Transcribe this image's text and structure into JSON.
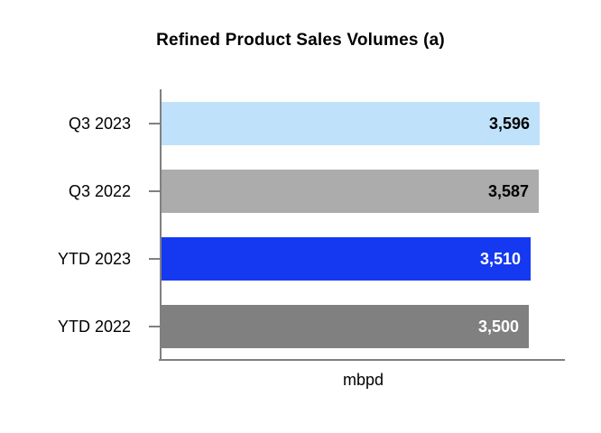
{
  "chart_data": {
    "type": "bar",
    "orientation": "horizontal",
    "title": "Refined Product Sales Volumes (a)",
    "xlabel": "mbpd",
    "categories": [
      "Q3 2023",
      "Q3 2022",
      "YTD 2023",
      "YTD 2022"
    ],
    "values": [
      3596,
      3587,
      3510,
      3500
    ],
    "value_labels": [
      "3,596",
      "3,587",
      "3,510",
      "3,500"
    ],
    "bar_colors": [
      "#C0E1FA",
      "#ACACAC",
      "#1539F0",
      "#808080"
    ],
    "value_label_colors": [
      "#000000",
      "#000000",
      "#FFFFFF",
      "#FFFFFF"
    ],
    "xlim": [
      0,
      3840
    ],
    "grid": false,
    "legend": false,
    "axis_color": "#808080",
    "background_color": "#FFFFFF"
  }
}
